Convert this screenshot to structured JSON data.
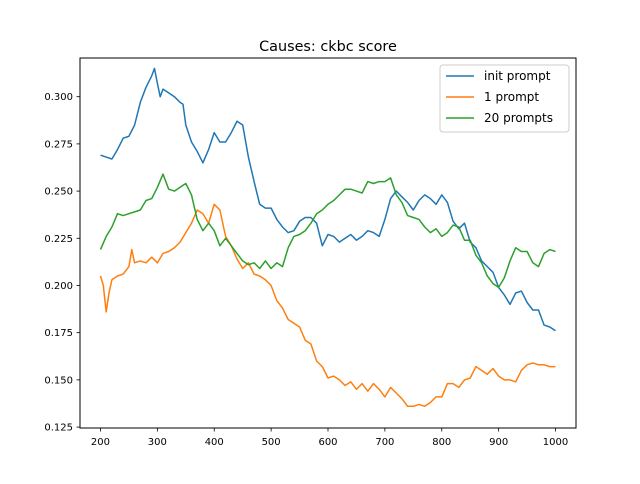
{
  "chart_data": {
    "type": "line",
    "title": "Causes: ckbc score",
    "xlabel": "",
    "ylabel": "",
    "xlim": [
      164,
      1036
    ],
    "ylim": [
      0.1245,
      0.3205
    ],
    "xticks": [
      200,
      300,
      400,
      500,
      600,
      700,
      800,
      900,
      1000
    ],
    "yticks": [
      0.125,
      0.15,
      0.175,
      0.2,
      0.225,
      0.25,
      0.275,
      0.3
    ],
    "xtick_labels": [
      "200",
      "300",
      "400",
      "500",
      "600",
      "700",
      "800",
      "900",
      "1000"
    ],
    "ytick_labels": [
      "0.125",
      "0.150",
      "0.175",
      "0.200",
      "0.225",
      "0.250",
      "0.275",
      "0.300"
    ],
    "grid": false,
    "legend_position": "top-right",
    "series": [
      {
        "name": "init prompt",
        "color": "#1f77b4",
        "points": [
          [
            200,
            0.269
          ],
          [
            210,
            0.268
          ],
          [
            220,
            0.267
          ],
          [
            230,
            0.272
          ],
          [
            240,
            0.278
          ],
          [
            250,
            0.279
          ],
          [
            260,
            0.285
          ],
          [
            270,
            0.297
          ],
          [
            280,
            0.305
          ],
          [
            290,
            0.311
          ],
          [
            295,
            0.315
          ],
          [
            300,
            0.307
          ],
          [
            305,
            0.3
          ],
          [
            310,
            0.304
          ],
          [
            320,
            0.302
          ],
          [
            330,
            0.3
          ],
          [
            340,
            0.297
          ],
          [
            345,
            0.296
          ],
          [
            350,
            0.285
          ],
          [
            360,
            0.276
          ],
          [
            370,
            0.271
          ],
          [
            380,
            0.265
          ],
          [
            390,
            0.272
          ],
          [
            400,
            0.281
          ],
          [
            410,
            0.276
          ],
          [
            420,
            0.276
          ],
          [
            430,
            0.281
          ],
          [
            440,
            0.287
          ],
          [
            450,
            0.285
          ],
          [
            460,
            0.268
          ],
          [
            470,
            0.255
          ],
          [
            480,
            0.243
          ],
          [
            490,
            0.241
          ],
          [
            500,
            0.241
          ],
          [
            510,
            0.235
          ],
          [
            520,
            0.231
          ],
          [
            530,
            0.228
          ],
          [
            540,
            0.229
          ],
          [
            550,
            0.234
          ],
          [
            560,
            0.236
          ],
          [
            570,
            0.236
          ],
          [
            580,
            0.233
          ],
          [
            590,
            0.221
          ],
          [
            600,
            0.227
          ],
          [
            610,
            0.226
          ],
          [
            620,
            0.223
          ],
          [
            630,
            0.225
          ],
          [
            640,
            0.227
          ],
          [
            650,
            0.224
          ],
          [
            660,
            0.226
          ],
          [
            670,
            0.229
          ],
          [
            680,
            0.228
          ],
          [
            690,
            0.226
          ],
          [
            700,
            0.235
          ],
          [
            710,
            0.246
          ],
          [
            720,
            0.25
          ],
          [
            730,
            0.247
          ],
          [
            740,
            0.244
          ],
          [
            750,
            0.24
          ],
          [
            760,
            0.245
          ],
          [
            770,
            0.248
          ],
          [
            780,
            0.246
          ],
          [
            790,
            0.243
          ],
          [
            800,
            0.248
          ],
          [
            810,
            0.244
          ],
          [
            820,
            0.234
          ],
          [
            830,
            0.23
          ],
          [
            840,
            0.233
          ],
          [
            850,
            0.223
          ],
          [
            860,
            0.22
          ],
          [
            870,
            0.213
          ],
          [
            880,
            0.21
          ],
          [
            890,
            0.207
          ],
          [
            900,
            0.199
          ],
          [
            910,
            0.195
          ],
          [
            920,
            0.19
          ],
          [
            930,
            0.196
          ],
          [
            940,
            0.197
          ],
          [
            950,
            0.191
          ],
          [
            960,
            0.187
          ],
          [
            970,
            0.187
          ],
          [
            980,
            0.179
          ],
          [
            990,
            0.178
          ],
          [
            1000,
            0.176
          ]
        ]
      },
      {
        "name": "1 prompt",
        "color": "#ff7f0e",
        "points": [
          [
            200,
            0.205
          ],
          [
            205,
            0.2
          ],
          [
            210,
            0.186
          ],
          [
            215,
            0.196
          ],
          [
            220,
            0.203
          ],
          [
            230,
            0.205
          ],
          [
            240,
            0.206
          ],
          [
            250,
            0.21
          ],
          [
            255,
            0.219
          ],
          [
            260,
            0.212
          ],
          [
            270,
            0.213
          ],
          [
            280,
            0.212
          ],
          [
            290,
            0.215
          ],
          [
            300,
            0.212
          ],
          [
            310,
            0.217
          ],
          [
            320,
            0.218
          ],
          [
            330,
            0.22
          ],
          [
            340,
            0.223
          ],
          [
            350,
            0.228
          ],
          [
            360,
            0.233
          ],
          [
            370,
            0.24
          ],
          [
            380,
            0.238
          ],
          [
            390,
            0.233
          ],
          [
            400,
            0.243
          ],
          [
            410,
            0.24
          ],
          [
            420,
            0.226
          ],
          [
            430,
            0.221
          ],
          [
            440,
            0.214
          ],
          [
            450,
            0.209
          ],
          [
            460,
            0.212
          ],
          [
            470,
            0.206
          ],
          [
            480,
            0.205
          ],
          [
            490,
            0.203
          ],
          [
            500,
            0.2
          ],
          [
            510,
            0.192
          ],
          [
            520,
            0.188
          ],
          [
            530,
            0.182
          ],
          [
            540,
            0.18
          ],
          [
            550,
            0.178
          ],
          [
            560,
            0.171
          ],
          [
            570,
            0.169
          ],
          [
            580,
            0.16
          ],
          [
            590,
            0.157
          ],
          [
            600,
            0.151
          ],
          [
            610,
            0.152
          ],
          [
            620,
            0.15
          ],
          [
            630,
            0.147
          ],
          [
            640,
            0.149
          ],
          [
            650,
            0.145
          ],
          [
            660,
            0.148
          ],
          [
            670,
            0.144
          ],
          [
            680,
            0.148
          ],
          [
            690,
            0.145
          ],
          [
            700,
            0.141
          ],
          [
            710,
            0.146
          ],
          [
            720,
            0.143
          ],
          [
            730,
            0.14
          ],
          [
            740,
            0.136
          ],
          [
            750,
            0.136
          ],
          [
            760,
            0.137
          ],
          [
            770,
            0.136
          ],
          [
            780,
            0.138
          ],
          [
            790,
            0.141
          ],
          [
            800,
            0.141
          ],
          [
            810,
            0.148
          ],
          [
            820,
            0.148
          ],
          [
            830,
            0.146
          ],
          [
            840,
            0.15
          ],
          [
            850,
            0.151
          ],
          [
            860,
            0.157
          ],
          [
            870,
            0.155
          ],
          [
            880,
            0.153
          ],
          [
            890,
            0.156
          ],
          [
            900,
            0.152
          ],
          [
            910,
            0.15
          ],
          [
            920,
            0.15
          ],
          [
            930,
            0.149
          ],
          [
            940,
            0.155
          ],
          [
            950,
            0.158
          ],
          [
            960,
            0.159
          ],
          [
            970,
            0.158
          ],
          [
            980,
            0.158
          ],
          [
            990,
            0.157
          ],
          [
            1000,
            0.157
          ]
        ]
      },
      {
        "name": "20 prompts",
        "color": "#2ca02c",
        "points": [
          [
            200,
            0.219
          ],
          [
            210,
            0.226
          ],
          [
            220,
            0.231
          ],
          [
            230,
            0.238
          ],
          [
            240,
            0.237
          ],
          [
            250,
            0.238
          ],
          [
            260,
            0.239
          ],
          [
            270,
            0.24
          ],
          [
            280,
            0.245
          ],
          [
            290,
            0.246
          ],
          [
            300,
            0.252
          ],
          [
            310,
            0.259
          ],
          [
            320,
            0.251
          ],
          [
            330,
            0.25
          ],
          [
            340,
            0.252
          ],
          [
            350,
            0.254
          ],
          [
            360,
            0.248
          ],
          [
            370,
            0.235
          ],
          [
            380,
            0.229
          ],
          [
            390,
            0.233
          ],
          [
            400,
            0.229
          ],
          [
            410,
            0.221
          ],
          [
            420,
            0.225
          ],
          [
            430,
            0.221
          ],
          [
            440,
            0.217
          ],
          [
            450,
            0.213
          ],
          [
            460,
            0.211
          ],
          [
            470,
            0.212
          ],
          [
            480,
            0.209
          ],
          [
            490,
            0.213
          ],
          [
            500,
            0.209
          ],
          [
            510,
            0.212
          ],
          [
            520,
            0.21
          ],
          [
            530,
            0.22
          ],
          [
            540,
            0.226
          ],
          [
            550,
            0.227
          ],
          [
            560,
            0.229
          ],
          [
            570,
            0.233
          ],
          [
            580,
            0.238
          ],
          [
            590,
            0.24
          ],
          [
            600,
            0.243
          ],
          [
            610,
            0.245
          ],
          [
            620,
            0.248
          ],
          [
            630,
            0.251
          ],
          [
            640,
            0.251
          ],
          [
            650,
            0.25
          ],
          [
            660,
            0.249
          ],
          [
            670,
            0.255
          ],
          [
            680,
            0.254
          ],
          [
            690,
            0.255
          ],
          [
            700,
            0.255
          ],
          [
            710,
            0.257
          ],
          [
            720,
            0.248
          ],
          [
            730,
            0.244
          ],
          [
            740,
            0.237
          ],
          [
            750,
            0.236
          ],
          [
            760,
            0.235
          ],
          [
            770,
            0.231
          ],
          [
            780,
            0.228
          ],
          [
            790,
            0.23
          ],
          [
            800,
            0.226
          ],
          [
            810,
            0.228
          ],
          [
            820,
            0.232
          ],
          [
            830,
            0.231
          ],
          [
            840,
            0.224
          ],
          [
            850,
            0.224
          ],
          [
            860,
            0.216
          ],
          [
            870,
            0.212
          ],
          [
            880,
            0.205
          ],
          [
            890,
            0.201
          ],
          [
            900,
            0.199
          ],
          [
            910,
            0.204
          ],
          [
            920,
            0.213
          ],
          [
            930,
            0.22
          ],
          [
            940,
            0.218
          ],
          [
            950,
            0.218
          ],
          [
            960,
            0.212
          ],
          [
            970,
            0.21
          ],
          [
            980,
            0.217
          ],
          [
            990,
            0.219
          ],
          [
            1000,
            0.218
          ]
        ]
      }
    ]
  }
}
